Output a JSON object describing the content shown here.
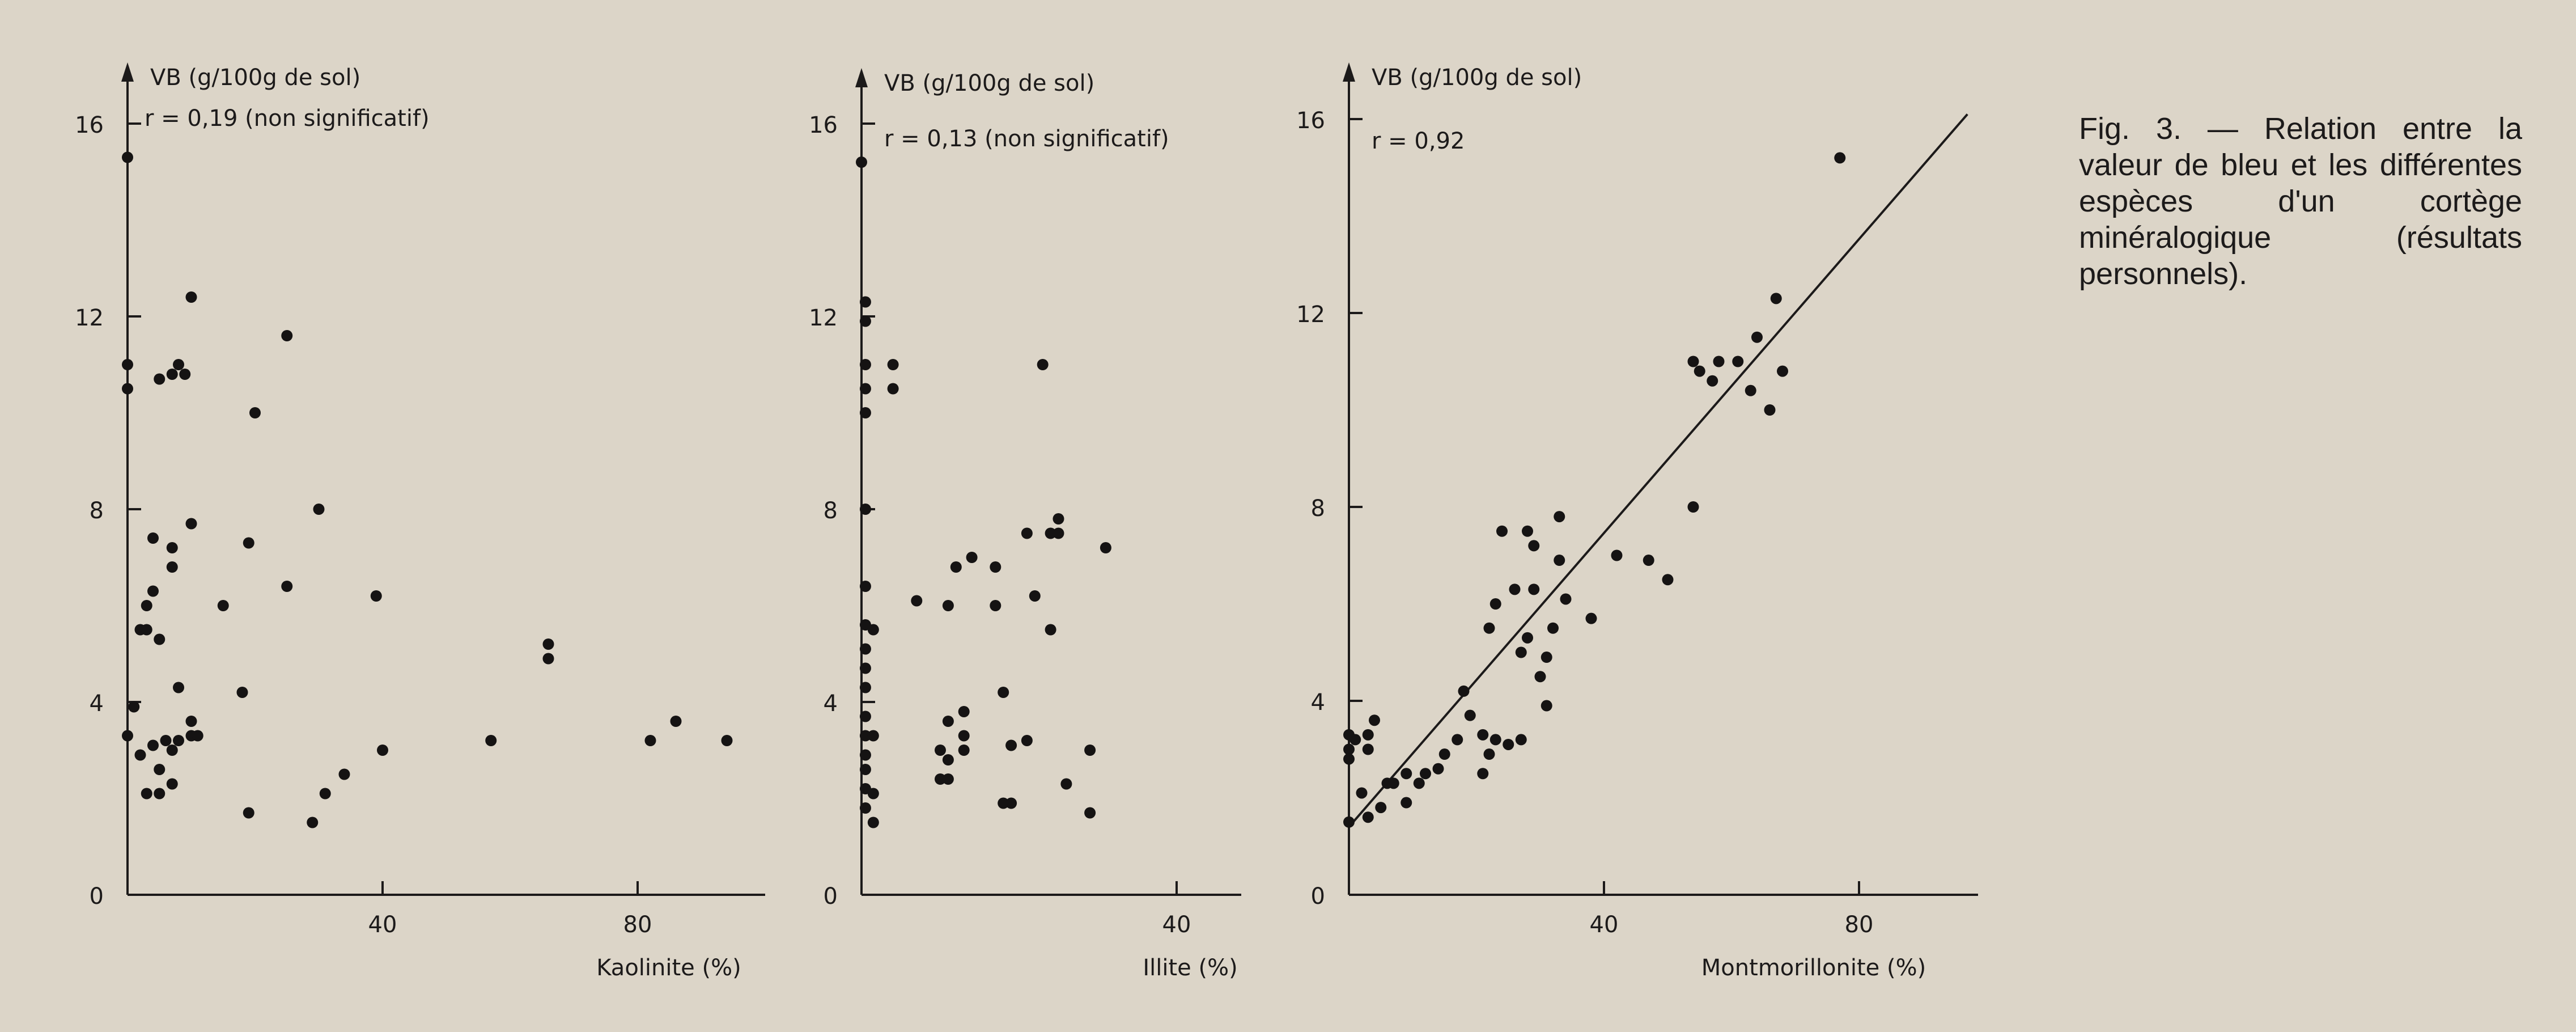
{
  "caption": "Fig. 3. — Relation entre la valeur de bleu et les différentes espèces d'un cortège minéralogique (résultats personnels).",
  "chart_data": [
    {
      "type": "scatter",
      "ylabel": "VB (g/100g de sol)",
      "xlabel": "Kaolinite (%)",
      "annotation": "r = 0,19 (non significatif)",
      "xlim": [
        0,
        100
      ],
      "ylim": [
        0,
        16
      ],
      "yticks": [
        0,
        4,
        8,
        12,
        16
      ],
      "xticks": [
        40,
        80
      ],
      "points": [
        [
          0,
          15.3
        ],
        [
          0,
          11
        ],
        [
          0,
          10.5
        ],
        [
          0,
          3.3
        ],
        [
          1,
          3.9
        ],
        [
          2,
          2.9
        ],
        [
          3,
          2.1
        ],
        [
          4,
          3.1
        ],
        [
          5,
          2.1
        ],
        [
          2,
          5.5
        ],
        [
          3,
          6
        ],
        [
          4,
          6.3
        ],
        [
          4,
          7.4
        ],
        [
          5,
          5.3
        ],
        [
          3,
          5.5
        ],
        [
          5,
          2.6
        ],
        [
          6,
          3.2
        ],
        [
          7,
          2.3
        ],
        [
          7,
          3
        ],
        [
          8,
          4.3
        ],
        [
          8,
          3.2
        ],
        [
          7,
          7.2
        ],
        [
          7,
          6.8
        ],
        [
          5,
          10.7
        ],
        [
          7,
          10.8
        ],
        [
          8,
          11
        ],
        [
          9,
          10.8
        ],
        [
          10,
          3.3
        ],
        [
          10,
          3.6
        ],
        [
          10,
          7.7
        ],
        [
          10,
          12.4
        ],
        [
          11,
          3.3
        ],
        [
          15,
          6
        ],
        [
          18,
          4.2
        ],
        [
          19,
          1.7
        ],
        [
          19,
          7.3
        ],
        [
          20,
          10
        ],
        [
          25,
          6.4
        ],
        [
          25,
          11.6
        ],
        [
          29,
          1.5
        ],
        [
          30,
          8
        ],
        [
          31,
          2.1
        ],
        [
          34,
          2.5
        ],
        [
          39,
          6.2
        ],
        [
          40,
          3
        ],
        [
          57,
          3.2
        ],
        [
          66,
          5.2
        ],
        [
          66,
          4.9
        ],
        [
          82,
          3.2
        ],
        [
          86,
          3.6
        ],
        [
          94,
          3.2
        ]
      ]
    },
    {
      "type": "scatter",
      "ylabel": "VB (g/100g de sol)",
      "xlabel": "Illite (%)",
      "annotation": "r = 0,13 (non significatif)",
      "xlim": [
        0,
        48
      ],
      "ylim": [
        0,
        16
      ],
      "yticks": [
        0,
        4,
        8,
        12,
        16
      ],
      "xticks": [
        40
      ],
      "points": [
        [
          0,
          15.2
        ],
        [
          0.5,
          12.3
        ],
        [
          0.5,
          11.9
        ],
        [
          0.5,
          11
        ],
        [
          0.5,
          10.5
        ],
        [
          0.5,
          10
        ],
        [
          0.5,
          8
        ],
        [
          0.5,
          6.4
        ],
        [
          0.5,
          5.6
        ],
        [
          0.5,
          5.1
        ],
        [
          0.5,
          4.7
        ],
        [
          0.5,
          4.3
        ],
        [
          0.5,
          3.7
        ],
        [
          0.5,
          3.3
        ],
        [
          0.5,
          2.9
        ],
        [
          0.5,
          2.6
        ],
        [
          0.5,
          2.2
        ],
        [
          0.5,
          1.8
        ],
        [
          1.5,
          5.5
        ],
        [
          1.5,
          3.3
        ],
        [
          1.5,
          2.1
        ],
        [
          1.5,
          1.5
        ],
        [
          4,
          11
        ],
        [
          4,
          10.5
        ],
        [
          7,
          6.1
        ],
        [
          10,
          2.4
        ],
        [
          10,
          3
        ],
        [
          11,
          6
        ],
        [
          11,
          2.4
        ],
        [
          11,
          3.6
        ],
        [
          11,
          2.8
        ],
        [
          12,
          6.8
        ],
        [
          13,
          3.8
        ],
        [
          13,
          3.3
        ],
        [
          13,
          3
        ],
        [
          14,
          7
        ],
        [
          17,
          6
        ],
        [
          17,
          6.8
        ],
        [
          18,
          1.9
        ],
        [
          18,
          4.2
        ],
        [
          19,
          3.1
        ],
        [
          19,
          1.9
        ],
        [
          21,
          7.5
        ],
        [
          21,
          3.2
        ],
        [
          22,
          6.2
        ],
        [
          23,
          11
        ],
        [
          24,
          7.5
        ],
        [
          24,
          5.5
        ],
        [
          25,
          7.8
        ],
        [
          25,
          7.5
        ],
        [
          26,
          2.3
        ],
        [
          29,
          3
        ],
        [
          29,
          1.7
        ],
        [
          31,
          7.2
        ]
      ]
    },
    {
      "type": "scatter",
      "ylabel": "VB (g/100g de sol)",
      "xlabel": "Montmorillonite (%)",
      "annotation": "r = 0,92",
      "xlim": [
        0,
        100
      ],
      "ylim": [
        0,
        16
      ],
      "yticks": [
        0,
        4,
        8,
        12,
        16
      ],
      "xticks": [
        40,
        80
      ],
      "regression": [
        [
          0,
          1.4
        ],
        [
          97,
          16.1
        ]
      ],
      "points": [
        [
          0,
          1.5
        ],
        [
          0,
          3.3
        ],
        [
          0,
          3
        ],
        [
          0,
          2.8
        ],
        [
          1,
          3.2
        ],
        [
          2,
          2.1
        ],
        [
          3,
          1.6
        ],
        [
          3,
          3.3
        ],
        [
          3,
          3
        ],
        [
          4,
          3.6
        ],
        [
          5,
          1.8
        ],
        [
          6,
          2.3
        ],
        [
          7,
          2.3
        ],
        [
          9,
          1.9
        ],
        [
          9,
          2.5
        ],
        [
          11,
          2.3
        ],
        [
          12,
          2.5
        ],
        [
          14,
          2.6
        ],
        [
          15,
          2.9
        ],
        [
          17,
          3.2
        ],
        [
          18,
          4.2
        ],
        [
          19,
          3.7
        ],
        [
          21,
          3.3
        ],
        [
          21,
          2.5
        ],
        [
          22,
          2.9
        ],
        [
          22,
          5.5
        ],
        [
          23,
          3.2
        ],
        [
          23,
          6
        ],
        [
          24,
          7.5
        ],
        [
          25,
          3.1
        ],
        [
          26,
          6.3
        ],
        [
          27,
          3.2
        ],
        [
          27,
          5
        ],
        [
          28,
          5.3
        ],
        [
          28,
          7.5
        ],
        [
          29,
          6.3
        ],
        [
          29,
          7.2
        ],
        [
          30,
          4.5
        ],
        [
          31,
          4.9
        ],
        [
          31,
          3.9
        ],
        [
          32,
          5.5
        ],
        [
          33,
          7.8
        ],
        [
          33,
          6.9
        ],
        [
          34,
          6.1
        ],
        [
          38,
          5.7
        ],
        [
          42,
          7
        ],
        [
          47,
          6.9
        ],
        [
          50,
          6.5
        ],
        [
          54,
          8
        ],
        [
          54,
          11
        ],
        [
          55,
          10.8
        ],
        [
          57,
          10.6
        ],
        [
          58,
          11
        ],
        [
          61,
          11
        ],
        [
          63,
          10.4
        ],
        [
          64,
          11.5
        ],
        [
          66,
          10
        ],
        [
          67,
          12.3
        ],
        [
          68,
          10.8
        ],
        [
          77,
          15.2
        ]
      ]
    }
  ]
}
